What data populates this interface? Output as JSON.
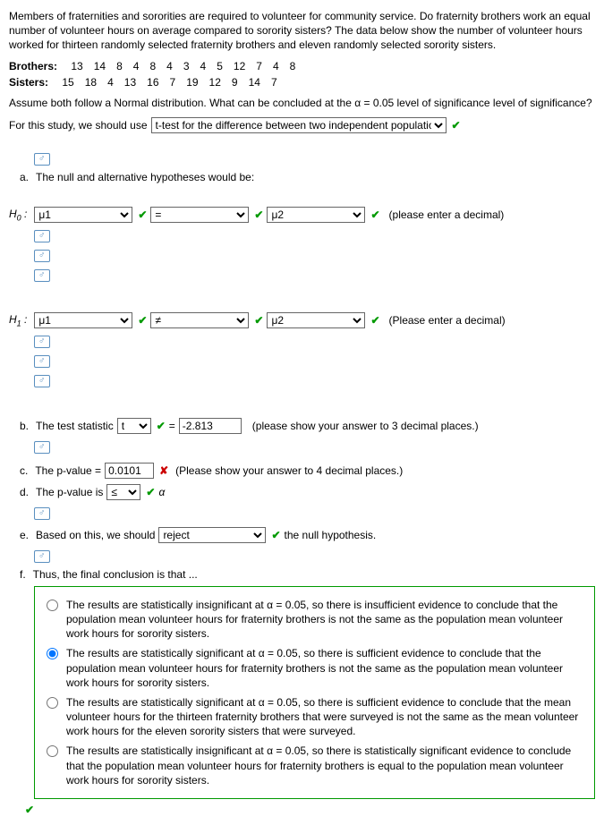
{
  "intro": "Members of fraternities and sororities are required to volunteer for community service. Do fraternity brothers work an equal number of volunteer hours on average compared to sorority sisters? The data below show the number of volunteer hours worked for thirteen randomly selected fraternity brothers and eleven randomly selected sorority sisters.",
  "brothers_label": "Brothers:",
  "brothers": [
    "13",
    "14",
    "8",
    "4",
    "8",
    "4",
    "3",
    "4",
    "5",
    "12",
    "7",
    "4",
    "8"
  ],
  "sisters_label": "Sisters:",
  "sisters": [
    "15",
    "18",
    "4",
    "13",
    "16",
    "7",
    "19",
    "12",
    "9",
    "14",
    "7"
  ],
  "assume": "Assume both follow a Normal distribution.  What can be concluded at the α = 0.05 level of significance level of significance?",
  "for_study": "For this study, we should use",
  "study_select": "t-test for the difference between two independent population means",
  "a_text": "The null and alternative hypotheses would be:",
  "h0_label": "H",
  "h0_sub": "0",
  "h1_label": "H",
  "h1_sub": "1",
  "mu1": "μ1",
  "eq": "=",
  "neq": "≠",
  "mu2": "μ2",
  "h0_hint": "(please enter a decimal)",
  "h1_hint": "(Please enter a decimal)",
  "b_text": "The test statistic",
  "b_sel": "t",
  "b_eq": "=",
  "b_val": "-2.813",
  "b_hint": "(please show your answer to 3 decimal places.)",
  "c_text": "The p-value =",
  "c_val": "0.0101",
  "c_hint": "(Please show your answer to 4 decimal places.)",
  "d_text": "The p-value is",
  "d_sel": "≤",
  "d_alpha": "α",
  "e_text": "Based on this, we should",
  "e_sel": "reject",
  "e_after": "the null hypothesis.",
  "f_text": "Thus, the final conclusion is that ...",
  "opt1": "The results are statistically insignificant at α = 0.05, so there is insufficient evidence to conclude that the population mean volunteer hours for fraternity brothers is not the same as the population mean volunteer work hours for sorority sisters.",
  "opt2": "The results are statistically significant at α = 0.05, so there is sufficient evidence to conclude that the population mean volunteer hours for fraternity brothers is not the same as the population mean volunteer work hours for sorority sisters.",
  "opt3": "The results are statistically significant at α = 0.05, so there is sufficient evidence to conclude that the mean volunteer hours for the thirteen fraternity brothers that were surveyed is not the same as the mean volunteer work hours for the eleven sorority sisters that were surveyed.",
  "opt4": "The results are statistically insignificant at α = 0.05, so there is statistically significant evidence to conclude that the population mean volunteer hours for fraternity brothers is equal to the population mean volunteer work hours for sorority sisters.",
  "link_glyph": "♂"
}
